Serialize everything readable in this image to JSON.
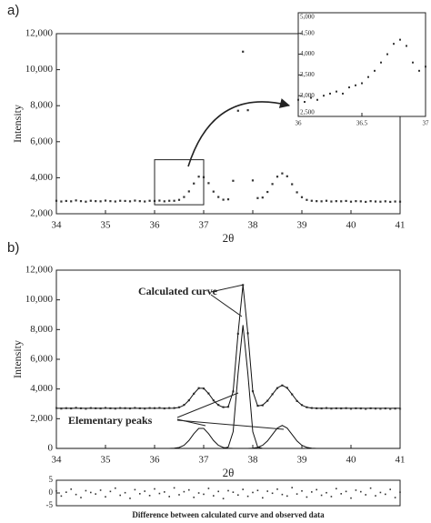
{
  "chart_data": [
    {
      "type": "scatter",
      "label": "a)",
      "xlabel": "2θ",
      "ylabel": "Intensity",
      "x": [
        34,
        34.1,
        34.2,
        34.3,
        34.4,
        34.5,
        34.6,
        34.7,
        34.8,
        34.9,
        35,
        35.1,
        35.2,
        35.3,
        35.4,
        35.5,
        35.6,
        35.7,
        35.8,
        35.9,
        36,
        36.1,
        36.2,
        36.3,
        36.4,
        36.5,
        36.6,
        36.7,
        36.8,
        36.9,
        37,
        37.1,
        37.2,
        37.3,
        37.4,
        37.5,
        37.6,
        37.7,
        37.8,
        37.9,
        38,
        38.1,
        38.2,
        38.3,
        38.4,
        38.5,
        38.6,
        38.7,
        38.8,
        38.9,
        39,
        39.1,
        39.2,
        39.3,
        39.4,
        39.5,
        39.6,
        39.7,
        39.8,
        39.9,
        40,
        40.1,
        40.2,
        40.3,
        40.4,
        40.5,
        40.6,
        40.7,
        40.8,
        40.9,
        41
      ],
      "series": [
        {
          "color": "#333333",
          "mode": "markers",
          "values": [
            2720,
            2680,
            2710,
            2690,
            2740,
            2700,
            2670,
            2720,
            2700,
            2690,
            2730,
            2700,
            2680,
            2720,
            2710,
            2690,
            2730,
            2700,
            2680,
            2720,
            2710,
            2730,
            2690,
            2720,
            2720,
            2770,
            2930,
            3240,
            3680,
            4060,
            4030,
            3700,
            3230,
            2930,
            2780,
            2800,
            3830,
            7720,
            11000,
            7750,
            3850,
            2870,
            2900,
            3210,
            3650,
            4060,
            4240,
            4080,
            3640,
            3190,
            2920,
            2770,
            2720,
            2700,
            2690,
            2720,
            2680,
            2700,
            2690,
            2710,
            2670,
            2700,
            2690,
            2660,
            2700,
            2680,
            2670,
            2690,
            2660,
            2680,
            2670
          ]
        }
      ],
      "xlim": [
        34,
        41
      ],
      "xticks": [
        34,
        35,
        36,
        37,
        38,
        39,
        40,
        41
      ],
      "ylim": [
        2000,
        12000
      ],
      "yticks": [
        {
          "value": 2000,
          "label": "2,000"
        },
        {
          "value": 4000,
          "label": "4,000"
        },
        {
          "value": 6000,
          "label": "6,000"
        },
        {
          "value": 8000,
          "label": "8,000"
        },
        {
          "value": 10000,
          "label": "10,000"
        },
        {
          "value": 12000,
          "label": "12,000"
        }
      ]
    },
    {
      "type": "scatter",
      "x": [
        36,
        36.05,
        36.1,
        36.15,
        36.2,
        36.25,
        36.3,
        36.35,
        36.4,
        36.45,
        36.5,
        36.55,
        36.6,
        36.65,
        36.7,
        36.75,
        36.8,
        36.85,
        36.9,
        36.95,
        37
      ],
      "series": [
        {
          "color": "#333333",
          "mode": "markers",
          "values": [
            2900,
            2850,
            2950,
            2900,
            3000,
            3050,
            3100,
            3050,
            3200,
            3250,
            3300,
            3450,
            3600,
            3800,
            4000,
            4250,
            4350,
            4200,
            3800,
            3600,
            3700
          ]
        }
      ],
      "xlim": [
        36,
        37
      ],
      "xticks": [
        36,
        36.5,
        37
      ],
      "ylim": [
        2500,
        5000
      ],
      "yticks": [
        {
          "value": 2500,
          "label": "2,500"
        },
        {
          "value": 3000,
          "label": "3,000"
        },
        {
          "value": 3500,
          "label": "3,500"
        },
        {
          "value": 4000,
          "label": "4,000"
        },
        {
          "value": 4500,
          "label": "4,500"
        },
        {
          "value": 5000,
          "label": "5,000"
        }
      ]
    },
    {
      "type": "line",
      "label": "b)",
      "xlabel": "2θ",
      "ylabel": "Intensity",
      "annotations": [
        "Calculated curve",
        "Elementary peaks"
      ],
      "x": [
        34,
        34.1,
        34.2,
        34.3,
        34.4,
        34.5,
        34.6,
        34.7,
        34.8,
        34.9,
        35,
        35.1,
        35.2,
        35.3,
        35.4,
        35.5,
        35.6,
        35.7,
        35.8,
        35.9,
        36,
        36.1,
        36.2,
        36.3,
        36.4,
        36.5,
        36.6,
        36.7,
        36.8,
        36.9,
        37,
        37.1,
        37.2,
        37.3,
        37.4,
        37.5,
        37.6,
        37.7,
        37.8,
        37.9,
        38,
        38.1,
        38.2,
        38.3,
        38.4,
        38.5,
        38.6,
        38.7,
        38.8,
        38.9,
        39,
        39.1,
        39.2,
        39.3,
        39.4,
        39.5,
        39.6,
        39.7,
        39.8,
        39.9,
        40,
        40.1,
        40.2,
        40.3,
        40.4,
        40.5,
        40.6,
        40.7,
        40.8,
        40.9,
        41
      ],
      "series": [
        {
          "color": "#555555",
          "mode": "markers",
          "values": [
            2720,
            2680,
            2710,
            2690,
            2740,
            2700,
            2670,
            2720,
            2700,
            2690,
            2730,
            2700,
            2680,
            2720,
            2710,
            2690,
            2730,
            2700,
            2680,
            2720,
            2710,
            2730,
            2690,
            2720,
            2720,
            2770,
            2930,
            3240,
            3680,
            4060,
            4030,
            3700,
            3230,
            2930,
            2780,
            2800,
            3830,
            7720,
            11000,
            7750,
            3850,
            2870,
            2900,
            3210,
            3650,
            4060,
            4240,
            4080,
            3640,
            3190,
            2920,
            2770,
            2720,
            2700,
            2690,
            2720,
            2680,
            2700,
            2690,
            2710,
            2670,
            2700,
            2690,
            2660,
            2700,
            2680,
            2670,
            2690,
            2660,
            2680,
            2670
          ]
        },
        {
          "color": "#111111",
          "mode": "line",
          "values": [
            2700,
            2700,
            2700,
            2700,
            2700,
            2700,
            2700,
            2700,
            2700,
            2700,
            2700,
            2700,
            2700,
            2700,
            2700,
            2700,
            2700,
            2700,
            2700,
            2700,
            2700,
            2700,
            2700,
            2702,
            2713,
            2761,
            2911,
            3235,
            3690,
            4047,
            4047,
            3690,
            3235,
            2911,
            2764,
            2805,
            3825,
            7734,
            11000,
            7737,
            3840,
            2860,
            2913,
            3203,
            3640,
            4068,
            4250,
            4068,
            3640,
            3203,
            2910,
            2768,
            2717,
            2703,
            2700,
            2700,
            2700,
            2700,
            2700,
            2700,
            2700,
            2700,
            2700,
            2700,
            2700,
            2700,
            2700,
            2700,
            2700,
            2700,
            2700
          ]
        },
        {
          "color": "#111111",
          "mode": "line",
          "values": [
            0,
            0,
            0,
            0,
            0,
            0,
            0,
            0,
            0,
            0,
            0,
            0,
            0,
            0,
            0,
            0,
            0,
            0,
            0,
            0,
            0,
            0,
            0,
            2,
            13,
            61,
            211,
            535,
            990,
            1347,
            1347,
            990,
            535,
            211,
            61,
            13,
            2,
            0,
            0,
            0,
            0,
            0,
            0,
            0,
            0,
            0,
            0,
            0,
            0,
            0,
            0,
            0,
            0,
            0,
            0,
            0,
            0,
            0,
            0,
            0,
            0,
            0,
            0,
            0,
            0,
            0,
            0,
            0,
            0,
            0,
            0
          ]
        },
        {
          "color": "#111111",
          "mode": "line",
          "values": [
            0,
            0,
            0,
            0,
            0,
            0,
            0,
            0,
            0,
            0,
            0,
            0,
            0,
            0,
            0,
            0,
            0,
            0,
            0,
            0,
            0,
            0,
            0,
            0,
            0,
            0,
            0,
            0,
            0,
            0,
            0,
            0,
            0,
            0,
            3,
            92,
            1123,
            5034,
            8300,
            5034,
            1123,
            92,
            3,
            0,
            0,
            0,
            0,
            0,
            0,
            0,
            0,
            0,
            0,
            0,
            0,
            0,
            0,
            0,
            0,
            0,
            0,
            0,
            0,
            0,
            0,
            0,
            0,
            0,
            0,
            0,
            0
          ]
        },
        {
          "color": "#111111",
          "mode": "line",
          "values": [
            0,
            0,
            0,
            0,
            0,
            0,
            0,
            0,
            0,
            0,
            0,
            0,
            0,
            0,
            0,
            0,
            0,
            0,
            0,
            0,
            0,
            0,
            0,
            0,
            0,
            0,
            0,
            0,
            0,
            0,
            0,
            0,
            0,
            0,
            0,
            0,
            0,
            0,
            0,
            3,
            17,
            68,
            210,
            503,
            940,
            1368,
            1550,
            1368,
            940,
            503,
            210,
            68,
            17,
            3,
            0,
            0,
            0,
            0,
            0,
            0,
            0,
            0,
            0,
            0,
            0,
            0,
            0,
            0,
            0,
            0,
            0
          ]
        }
      ],
      "xlim": [
        34,
        41
      ],
      "xticks": [
        34,
        35,
        36,
        37,
        38,
        39,
        40,
        41
      ],
      "ylim": [
        0,
        12000
      ],
      "yticks": [
        0,
        {
          "value": 2000,
          "label": "2,000"
        },
        {
          "value": 4000,
          "label": "4,000"
        },
        {
          "value": 6000,
          "label": "6,000"
        },
        {
          "value": 8000,
          "label": "8,000"
        },
        {
          "value": 10000,
          "label": "10,000"
        },
        {
          "value": 12000,
          "label": "12,000"
        }
      ]
    },
    {
      "type": "scatter",
      "xlabel": "Difference between calculated curve and observed data",
      "x": [
        34,
        34.1,
        34.2,
        34.3,
        34.4,
        34.5,
        34.6,
        34.7,
        34.8,
        34.9,
        35,
        35.1,
        35.2,
        35.3,
        35.4,
        35.5,
        35.6,
        35.7,
        35.8,
        35.9,
        36,
        36.1,
        36.2,
        36.3,
        36.4,
        36.5,
        36.6,
        36.7,
        36.8,
        36.9,
        37,
        37.1,
        37.2,
        37.3,
        37.4,
        37.5,
        37.6,
        37.7,
        37.8,
        37.9,
        38,
        38.1,
        38.2,
        38.3,
        38.4,
        38.5,
        38.6,
        38.7,
        38.8,
        38.9,
        39,
        39.1,
        39.2,
        39.3,
        39.4,
        39.5,
        39.6,
        39.7,
        39.8,
        39.9,
        40,
        40.1,
        40.2,
        40.3,
        40.4,
        40.5,
        40.6,
        40.7,
        40.8,
        40.9,
        41
      ],
      "series": [
        {
          "color": "#333333",
          "mode": "markers",
          "values": [
            0.8,
            -1.2,
            0.3,
            1.5,
            -0.6,
            -1.8,
            0.9,
            0.2,
            -0.4,
            1.1,
            -1.5,
            0.6,
            1.9,
            -0.9,
            0.1,
            -2.1,
            1.3,
            -0.3,
            0.7,
            -1.0,
            1.6,
            -0.2,
            0.4,
            -1.4,
            2.0,
            -0.7,
            0.5,
            1.2,
            -1.7,
            0.0,
            -0.5,
            1.8,
            -1.1,
            0.6,
            -2.2,
            0.9,
            0.3,
            -0.8,
            1.4,
            -1.3,
            0.2,
            1.0,
            -1.9,
            0.7,
            -0.1,
            1.5,
            -0.6,
            -1.2,
            2.1,
            -0.4,
            0.8,
            -1.6,
            0.4,
            1.3,
            -0.9,
            0.1,
            -1.4,
            1.7,
            -0.3,
            0.6,
            -2.0,
            1.1,
            0.5,
            -0.7,
            1.9,
            -1.1,
            0.2,
            -0.5,
            1.4,
            -1.8,
            0.3
          ]
        }
      ],
      "xlim": [
        34,
        41
      ],
      "ylim": [
        -5,
        5
      ],
      "yticks": [
        -5,
        0,
        5
      ]
    }
  ]
}
